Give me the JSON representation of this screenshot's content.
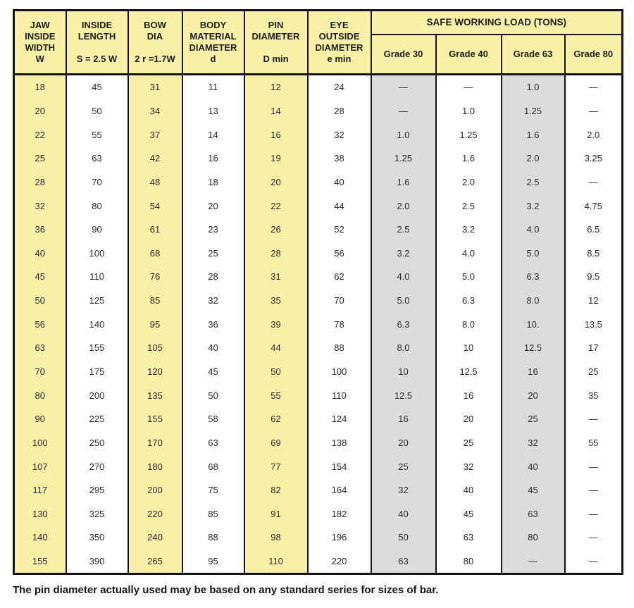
{
  "table": {
    "columns": [
      {
        "label": "JAW\nINSIDE\nWIDTH\nW"
      },
      {
        "label": "INSIDE\nLENGTH\n\nS = 2.5 W"
      },
      {
        "label": "BOW\nDIA\n\n2 r =1.7W"
      },
      {
        "label": "BODY\nMATERIAL\nDIAMETER\nd"
      },
      {
        "label": "PIN\nDIAMETER\n\nD min"
      },
      {
        "label": "EYE\nOUTSIDE\nDIAMETER\ne min"
      }
    ],
    "swl": {
      "title": "SAFE WORKING LOAD (TONS)",
      "grades": [
        "Grade 30",
        "Grade 40",
        "Grade 63",
        "Grade 80"
      ]
    },
    "column_shading": [
      "yellow",
      "white",
      "yellow",
      "white",
      "yellow",
      "white",
      "gray",
      "white",
      "gray",
      "white"
    ],
    "rows": [
      [
        "18",
        "45",
        "31",
        "11",
        "12",
        "24",
        "—",
        "—",
        "1.0",
        "—"
      ],
      [
        "20",
        "50",
        "34",
        "13",
        "14",
        "28",
        "—",
        "1.0",
        "1.25",
        "—"
      ],
      [
        "22",
        "55",
        "37",
        "14",
        "16",
        "32",
        "1.0",
        "1.25",
        "1.6",
        "2.0"
      ],
      [
        "25",
        "63",
        "42",
        "16",
        "19",
        "38",
        "1.25",
        "1.6",
        "2.0",
        "3.25"
      ],
      [
        "28",
        "70",
        "48",
        "18",
        "20",
        "40",
        "1.6",
        "2.0",
        "2.5",
        "—"
      ],
      [
        "32",
        "80",
        "54",
        "20",
        "22",
        "44",
        "2.0",
        "2.5",
        "3.2",
        "4.75"
      ],
      [
        "36",
        "90",
        "61",
        "23",
        "26",
        "52",
        "2.5",
        "3.2",
        "4.0",
        "6.5"
      ],
      [
        "40",
        "100",
        "68",
        "25",
        "28",
        "56",
        "3.2",
        "4.0",
        "5.0",
        "8.5"
      ],
      [
        "45",
        "110",
        "76",
        "28",
        "31",
        "62",
        "4.0",
        "5.0",
        "6.3",
        "9.5"
      ],
      [
        "50",
        "125",
        "85",
        "32",
        "35",
        "70",
        "5.0",
        "6.3",
        "8.0",
        "12"
      ],
      [
        "56",
        "140",
        "95",
        "36",
        "39",
        "78",
        "6.3",
        "8.0",
        "10.",
        "13.5"
      ],
      [
        "63",
        "155",
        "105",
        "40",
        "44",
        "88",
        "8.0",
        "10",
        "12.5",
        "17"
      ],
      [
        "70",
        "175",
        "120",
        "45",
        "50",
        "100",
        "10",
        "12.5",
        "16",
        "25"
      ],
      [
        "80",
        "200",
        "135",
        "50",
        "55",
        "110",
        "12.5",
        "16",
        "20",
        "35"
      ],
      [
        "90",
        "225",
        "155",
        "58",
        "62",
        "124",
        "16",
        "20",
        "25",
        "—"
      ],
      [
        "100",
        "250",
        "170",
        "63",
        "69",
        "138",
        "20",
        "25",
        "32",
        "55"
      ],
      [
        "107",
        "270",
        "180",
        "68",
        "77",
        "154",
        "25",
        "32",
        "40",
        "—"
      ],
      [
        "117",
        "295",
        "200",
        "75",
        "82",
        "164",
        "32",
        "40",
        "45",
        "—"
      ],
      [
        "130",
        "325",
        "220",
        "85",
        "91",
        "182",
        "40",
        "45",
        "63",
        "—"
      ],
      [
        "140",
        "350",
        "240",
        "88",
        "98",
        "196",
        "50",
        "63",
        "80",
        "—"
      ],
      [
        "155",
        "390",
        "265",
        "95",
        "110",
        "220",
        "63",
        "80",
        "—",
        "—"
      ]
    ]
  },
  "footnote": "The pin diameter actually used may be based on any standard series for sizes of bar.",
  "colors": {
    "header_yellow": "#f8f2a8",
    "shade_gray": "#dcdcdc",
    "border_black": "#141414"
  }
}
